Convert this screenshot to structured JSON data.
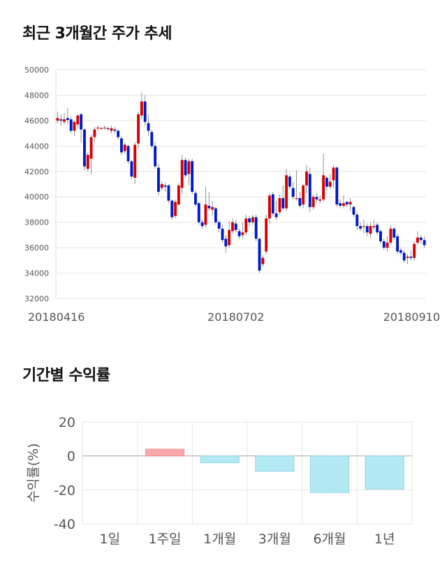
{
  "sections": {
    "price_title": "최근 3개월간 주가 추세",
    "returns_title": "기간별 수익률"
  },
  "colors": {
    "up": "#d60000",
    "down": "#0019c6",
    "bar_positive": "#f9a9a9",
    "bar_negative": "#b3e9f3",
    "grid": "#e6e6e6"
  },
  "chart_data": [
    {
      "type": "candlestick",
      "title": "최근 3개월간 주가 추세",
      "ylim": [
        32000,
        50000
      ],
      "y_ticks": [
        "50000",
        "48000",
        "46000",
        "44000",
        "42000",
        "40000",
        "38000",
        "36000",
        "34000",
        "32000"
      ],
      "x_tick_labels": [
        {
          "label": "20180416",
          "index": 0
        },
        {
          "label": "20180702",
          "index": 53
        },
        {
          "label": "20180910",
          "index": 102
        }
      ],
      "grid": true,
      "candles": [
        [
          46000,
          46200,
          46700,
          45800
        ],
        [
          46100,
          46000,
          46500,
          45600
        ],
        [
          45900,
          46100,
          46600,
          45700
        ],
        [
          46200,
          46050,
          47000,
          45700
        ],
        [
          46100,
          45200,
          46300,
          45000
        ],
        [
          45200,
          45900,
          46000,
          44800
        ],
        [
          45700,
          46400,
          46500,
          45400
        ],
        [
          46500,
          45300,
          46600,
          44300
        ],
        [
          45300,
          42400,
          45400,
          42100
        ],
        [
          42200,
          43300,
          43500,
          42000
        ],
        [
          43000,
          44700,
          44900,
          41800
        ],
        [
          44700,
          45300,
          45500,
          44300
        ],
        [
          45400,
          45450,
          45600,
          45200
        ],
        [
          45400,
          45400,
          45500,
          45300
        ],
        [
          45400,
          45450,
          45600,
          45300
        ],
        [
          45400,
          45350,
          45500,
          45200
        ],
        [
          45200,
          45400,
          45600,
          45000
        ],
        [
          45300,
          45200,
          45500,
          45000
        ],
        [
          45200,
          44700,
          45300,
          44500
        ],
        [
          44600,
          43500,
          44800,
          43300
        ],
        [
          43600,
          44100,
          44300,
          43400
        ],
        [
          44000,
          42800,
          44100,
          42600
        ],
        [
          42800,
          41600,
          42900,
          41400
        ],
        [
          41500,
          44100,
          44300,
          41000
        ],
        [
          44200,
          46500,
          46700,
          43800
        ],
        [
          46400,
          47500,
          48200,
          46100
        ],
        [
          47500,
          45900,
          48000,
          45600
        ],
        [
          45800,
          45200,
          46500,
          44800
        ],
        [
          45100,
          44000,
          45300,
          43800
        ],
        [
          44000,
          42400,
          44300,
          42200
        ],
        [
          42300,
          40400,
          42600,
          40100
        ],
        [
          40700,
          41000,
          41200,
          40500
        ],
        [
          40900,
          40800,
          41100,
          40400
        ],
        [
          40900,
          39700,
          41000,
          39500
        ],
        [
          39700,
          38400,
          39800,
          38200
        ],
        [
          38500,
          39600,
          39800,
          38300
        ],
        [
          39400,
          40900,
          41100,
          39300
        ],
        [
          40700,
          42900,
          43300,
          40200
        ],
        [
          42900,
          41700,
          43100,
          41500
        ],
        [
          41800,
          42800,
          43000,
          40900
        ],
        [
          42800,
          40400,
          43000,
          40200
        ],
        [
          40300,
          39400,
          40500,
          39200
        ],
        [
          39500,
          38000,
          39600,
          37800
        ],
        [
          38000,
          37700,
          38200,
          37500
        ],
        [
          37800,
          39400,
          40800,
          37600
        ],
        [
          39300,
          39100,
          40400,
          38900
        ],
        [
          39000,
          39200,
          39700,
          38500
        ],
        [
          39100,
          38000,
          39200,
          37800
        ],
        [
          38000,
          37500,
          38200,
          37200
        ],
        [
          37500,
          36600,
          37800,
          36400
        ],
        [
          36700,
          36100,
          37000,
          35600
        ],
        [
          36200,
          37400,
          38100,
          36000
        ],
        [
          37300,
          38000,
          38300,
          37100
        ],
        [
          37900,
          37400,
          38200,
          37200
        ],
        [
          37300,
          36900,
          37500,
          36700
        ],
        [
          37000,
          37200,
          38000,
          36700
        ],
        [
          37200,
          38300,
          38600,
          37000
        ],
        [
          38300,
          38000,
          38500,
          37700
        ],
        [
          38000,
          38400,
          38600,
          37800
        ],
        [
          38400,
          36700,
          38600,
          36500
        ],
        [
          36700,
          34200,
          36800,
          34000
        ],
        [
          34700,
          35200,
          35400,
          34500
        ],
        [
          35700,
          38300,
          38600,
          35500
        ],
        [
          38300,
          40100,
          40300,
          37900
        ],
        [
          40200,
          38700,
          40400,
          38500
        ],
        [
          38700,
          38400,
          39700,
          38200
        ],
        [
          38800,
          39900,
          40200,
          38600
        ],
        [
          39900,
          39100,
          40900,
          39000
        ],
        [
          39100,
          41700,
          42200,
          38900
        ],
        [
          41600,
          40800,
          41800,
          40600
        ],
        [
          40700,
          40000,
          41200,
          39800
        ],
        [
          39900,
          39900,
          42100,
          39700
        ],
        [
          39900,
          39300,
          40400,
          39100
        ],
        [
          39400,
          40900,
          41000,
          39100
        ],
        [
          40900,
          42000,
          42500,
          40300
        ],
        [
          41800,
          39200,
          42300,
          38800
        ],
        [
          39200,
          40000,
          40200,
          39000
        ],
        [
          40000,
          39800,
          40300,
          39600
        ],
        [
          39700,
          39800,
          40100,
          39500
        ],
        [
          39800,
          41700,
          43400,
          39600
        ],
        [
          41500,
          40800,
          41600,
          40500
        ],
        [
          40800,
          41200,
          41800,
          40600
        ],
        [
          41300,
          42300,
          42500,
          40700
        ],
        [
          42300,
          39400,
          42400,
          39200
        ],
        [
          39500,
          39300,
          39800,
          39100
        ],
        [
          39300,
          39500,
          40100,
          39100
        ],
        [
          39600,
          39400,
          39700,
          39200
        ],
        [
          39400,
          39600,
          39900,
          38900
        ],
        [
          39200,
          38600,
          39300,
          38400
        ],
        [
          38600,
          37700,
          38800,
          37400
        ],
        [
          37700,
          37500,
          38000,
          37300
        ],
        [
          37700,
          37700,
          38200,
          37100
        ],
        [
          37700,
          37200,
          37900,
          36900
        ],
        [
          37100,
          37700,
          38000,
          36800
        ],
        [
          37600,
          37700,
          38200,
          37400
        ],
        [
          37800,
          37200,
          38000,
          37000
        ],
        [
          37300,
          36500,
          37400,
          36300
        ],
        [
          36500,
          36000,
          36700,
          35800
        ],
        [
          36000,
          36400,
          36900,
          35700
        ],
        [
          36400,
          37500,
          37800,
          36200
        ],
        [
          37500,
          36800,
          37600,
          36600
        ],
        [
          36900,
          35700,
          37100,
          35500
        ],
        [
          35800,
          35600,
          36000,
          35400
        ],
        [
          35600,
          35000,
          35800,
          34800
        ],
        [
          35200,
          35300,
          35500,
          34700
        ],
        [
          35300,
          35200,
          35800,
          35000
        ],
        [
          35200,
          36300,
          36500,
          35000
        ],
        [
          36400,
          36800,
          37300,
          36200
        ],
        [
          36800,
          36600,
          37000,
          36300
        ],
        [
          36600,
          36200,
          36900,
          36000
        ]
      ]
    },
    {
      "type": "bar",
      "title": "기간별 수익률",
      "ylabel": "수익률(%)",
      "ylim": [
        -40,
        20
      ],
      "y_ticks": [
        "20",
        "0",
        "-20",
        "-40"
      ],
      "grid": true,
      "categories": [
        "1일",
        "1주일",
        "1개월",
        "3개월",
        "6개월",
        "1년"
      ],
      "values": [
        0,
        4.0,
        -4.0,
        -9.0,
        -21.5,
        -19.5
      ]
    }
  ]
}
